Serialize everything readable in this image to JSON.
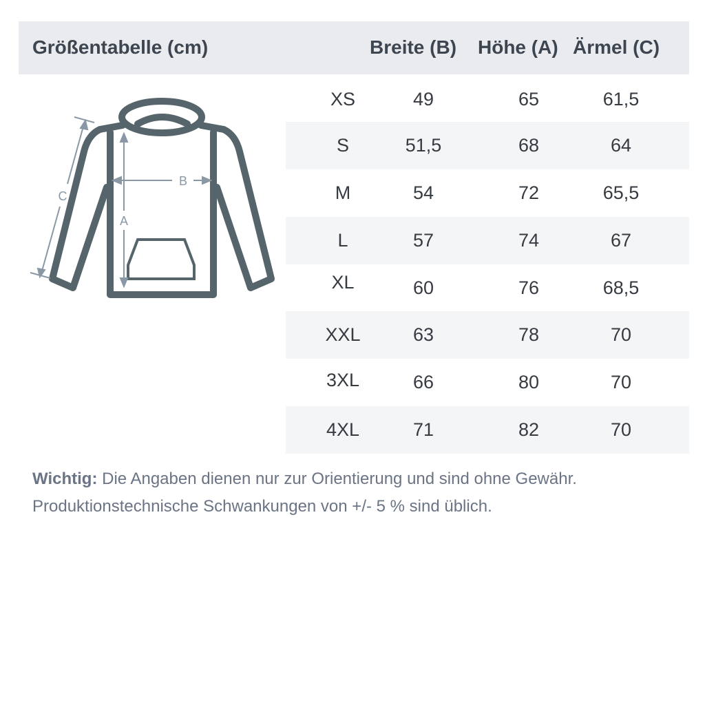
{
  "header": {
    "title": "Größentabelle (cm)",
    "columns": [
      "Breite (B)",
      "Höhe (A)",
      "Ärmel (C)"
    ]
  },
  "diagram": {
    "labels": {
      "a": "A",
      "b": "B",
      "c": "C"
    },
    "outline_color": "#56646b",
    "arrow_color": "#8a98a6"
  },
  "rows": [
    {
      "size": "XS",
      "b": "49",
      "a": "65",
      "c": "61,5"
    },
    {
      "size": "S",
      "b": "51,5",
      "a": "68",
      "c": "64"
    },
    {
      "size": "M",
      "b": "54",
      "a": "72",
      "c": "65,5"
    },
    {
      "size": "L",
      "b": "57",
      "a": "74",
      "c": "67"
    },
    {
      "size": "XL",
      "b": "60",
      "a": "76",
      "c": "68,5"
    },
    {
      "size": "XXL",
      "b": "63",
      "a": "78",
      "c": "70"
    },
    {
      "size": "3XL",
      "b": "66",
      "a": "80",
      "c": "70"
    },
    {
      "size": "4XL",
      "b": "71",
      "a": "82",
      "c": "70"
    }
  ],
  "note": {
    "bold": "Wichtig:",
    "line1": " Die Angaben dienen nur zur Orientierung und sind ohne Gewähr.",
    "line2": "Produktionstechnische Schwankungen von +/- 5 % sind üblich."
  }
}
